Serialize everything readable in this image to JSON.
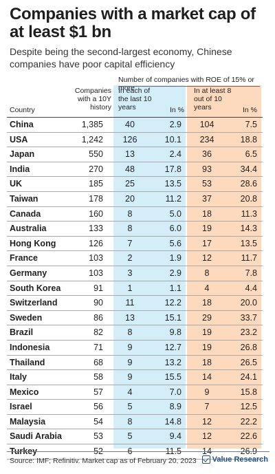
{
  "title": "Companies with a market cap of at least $1 bn",
  "subtitle": "Despite being the second-largest economy, Chinese companies have poor capital efficiency",
  "table": {
    "group_header": "Number of companies with ROE of 15% or more",
    "col_country": "Country",
    "col_companies": "Companies with a 10Y history",
    "col_each": "In each of the last 10 years",
    "col_pct1": "In %",
    "col_atleast": "In at least 8 out of 10 years",
    "col_pct2": "In %"
  },
  "colors": {
    "blue_band": "#d3eef9",
    "orange_band": "#fdd9bd",
    "brand": "#1a4e8a"
  },
  "chart_data": {
    "type": "table",
    "title": "Companies with a market cap of at least $1 bn",
    "columns": [
      "Country",
      "Companies with a 10Y history",
      "In each of the last 10 years",
      "In %",
      "In at least 8 out of 10 years",
      "In %"
    ],
    "rows": [
      {
        "country": "China",
        "companies": "1,385",
        "each": "40",
        "pct1": "2.9",
        "atleast": "104",
        "pct2": "7.5"
      },
      {
        "country": "USA",
        "companies": "1,242",
        "each": "126",
        "pct1": "10.1",
        "atleast": "234",
        "pct2": "18.8"
      },
      {
        "country": "Japan",
        "companies": "550",
        "each": "13",
        "pct1": "2.4",
        "atleast": "36",
        "pct2": "6.5"
      },
      {
        "country": "India",
        "companies": "270",
        "each": "48",
        "pct1": "17.8",
        "atleast": "93",
        "pct2": "34.4"
      },
      {
        "country": "UK",
        "companies": "185",
        "each": "25",
        "pct1": "13.5",
        "atleast": "53",
        "pct2": "28.6"
      },
      {
        "country": "Taiwan",
        "companies": "178",
        "each": "20",
        "pct1": "11.2",
        "atleast": "37",
        "pct2": "20.8"
      },
      {
        "country": "Canada",
        "companies": "160",
        "each": "8",
        "pct1": "5.0",
        "atleast": "18",
        "pct2": "11.3"
      },
      {
        "country": "Australia",
        "companies": "133",
        "each": "8",
        "pct1": "6.0",
        "atleast": "19",
        "pct2": "14.3"
      },
      {
        "country": "Hong Kong",
        "companies": "126",
        "each": "7",
        "pct1": "5.6",
        "atleast": "17",
        "pct2": "13.5"
      },
      {
        "country": "France",
        "companies": "103",
        "each": "2",
        "pct1": "1.9",
        "atleast": "12",
        "pct2": "11.7"
      },
      {
        "country": "Germany",
        "companies": "103",
        "each": "3",
        "pct1": "2.9",
        "atleast": "8",
        "pct2": "7.8"
      },
      {
        "country": "South Korea",
        "companies": "91",
        "each": "1",
        "pct1": "1.1",
        "atleast": "4",
        "pct2": "4.4"
      },
      {
        "country": "Switzerland",
        "companies": "90",
        "each": "11",
        "pct1": "12.2",
        "atleast": "18",
        "pct2": "20.0"
      },
      {
        "country": "Sweden",
        "companies": "86",
        "each": "13",
        "pct1": "15.1",
        "atleast": "29",
        "pct2": "33.7"
      },
      {
        "country": "Brazil",
        "companies": "82",
        "each": "8",
        "pct1": "9.8",
        "atleast": "19",
        "pct2": "23.2"
      },
      {
        "country": "Indonesia",
        "companies": "71",
        "each": "9",
        "pct1": "12.7",
        "atleast": "19",
        "pct2": "26.8"
      },
      {
        "country": "Thailand",
        "companies": "68",
        "each": "9",
        "pct1": "13.2",
        "atleast": "18",
        "pct2": "26.5"
      },
      {
        "country": "Italy",
        "companies": "58",
        "each": "9",
        "pct1": "15.5",
        "atleast": "14",
        "pct2": "24.1"
      },
      {
        "country": "Mexico",
        "companies": "57",
        "each": "4",
        "pct1": "7.0",
        "atleast": "9",
        "pct2": "15.8"
      },
      {
        "country": "Israel",
        "companies": "56",
        "each": "5",
        "pct1": "8.9",
        "atleast": "7",
        "pct2": "12.5"
      },
      {
        "country": "Malaysia",
        "companies": "54",
        "each": "8",
        "pct1": "14.8",
        "atleast": "12",
        "pct2": "22.2"
      },
      {
        "country": "Saudi Arabia",
        "companies": "53",
        "each": "5",
        "pct1": "9.4",
        "atleast": "12",
        "pct2": "22.6"
      },
      {
        "country": "Turkey",
        "companies": "52",
        "each": "6",
        "pct1": "11.5",
        "atleast": "14",
        "pct2": "26.9"
      }
    ]
  },
  "footer": {
    "source": "Source: IMF; Refinitiv. Market cap as of February 20, 2023",
    "brand": "Value Research",
    "brand_icon": "checkmark-box-icon"
  }
}
